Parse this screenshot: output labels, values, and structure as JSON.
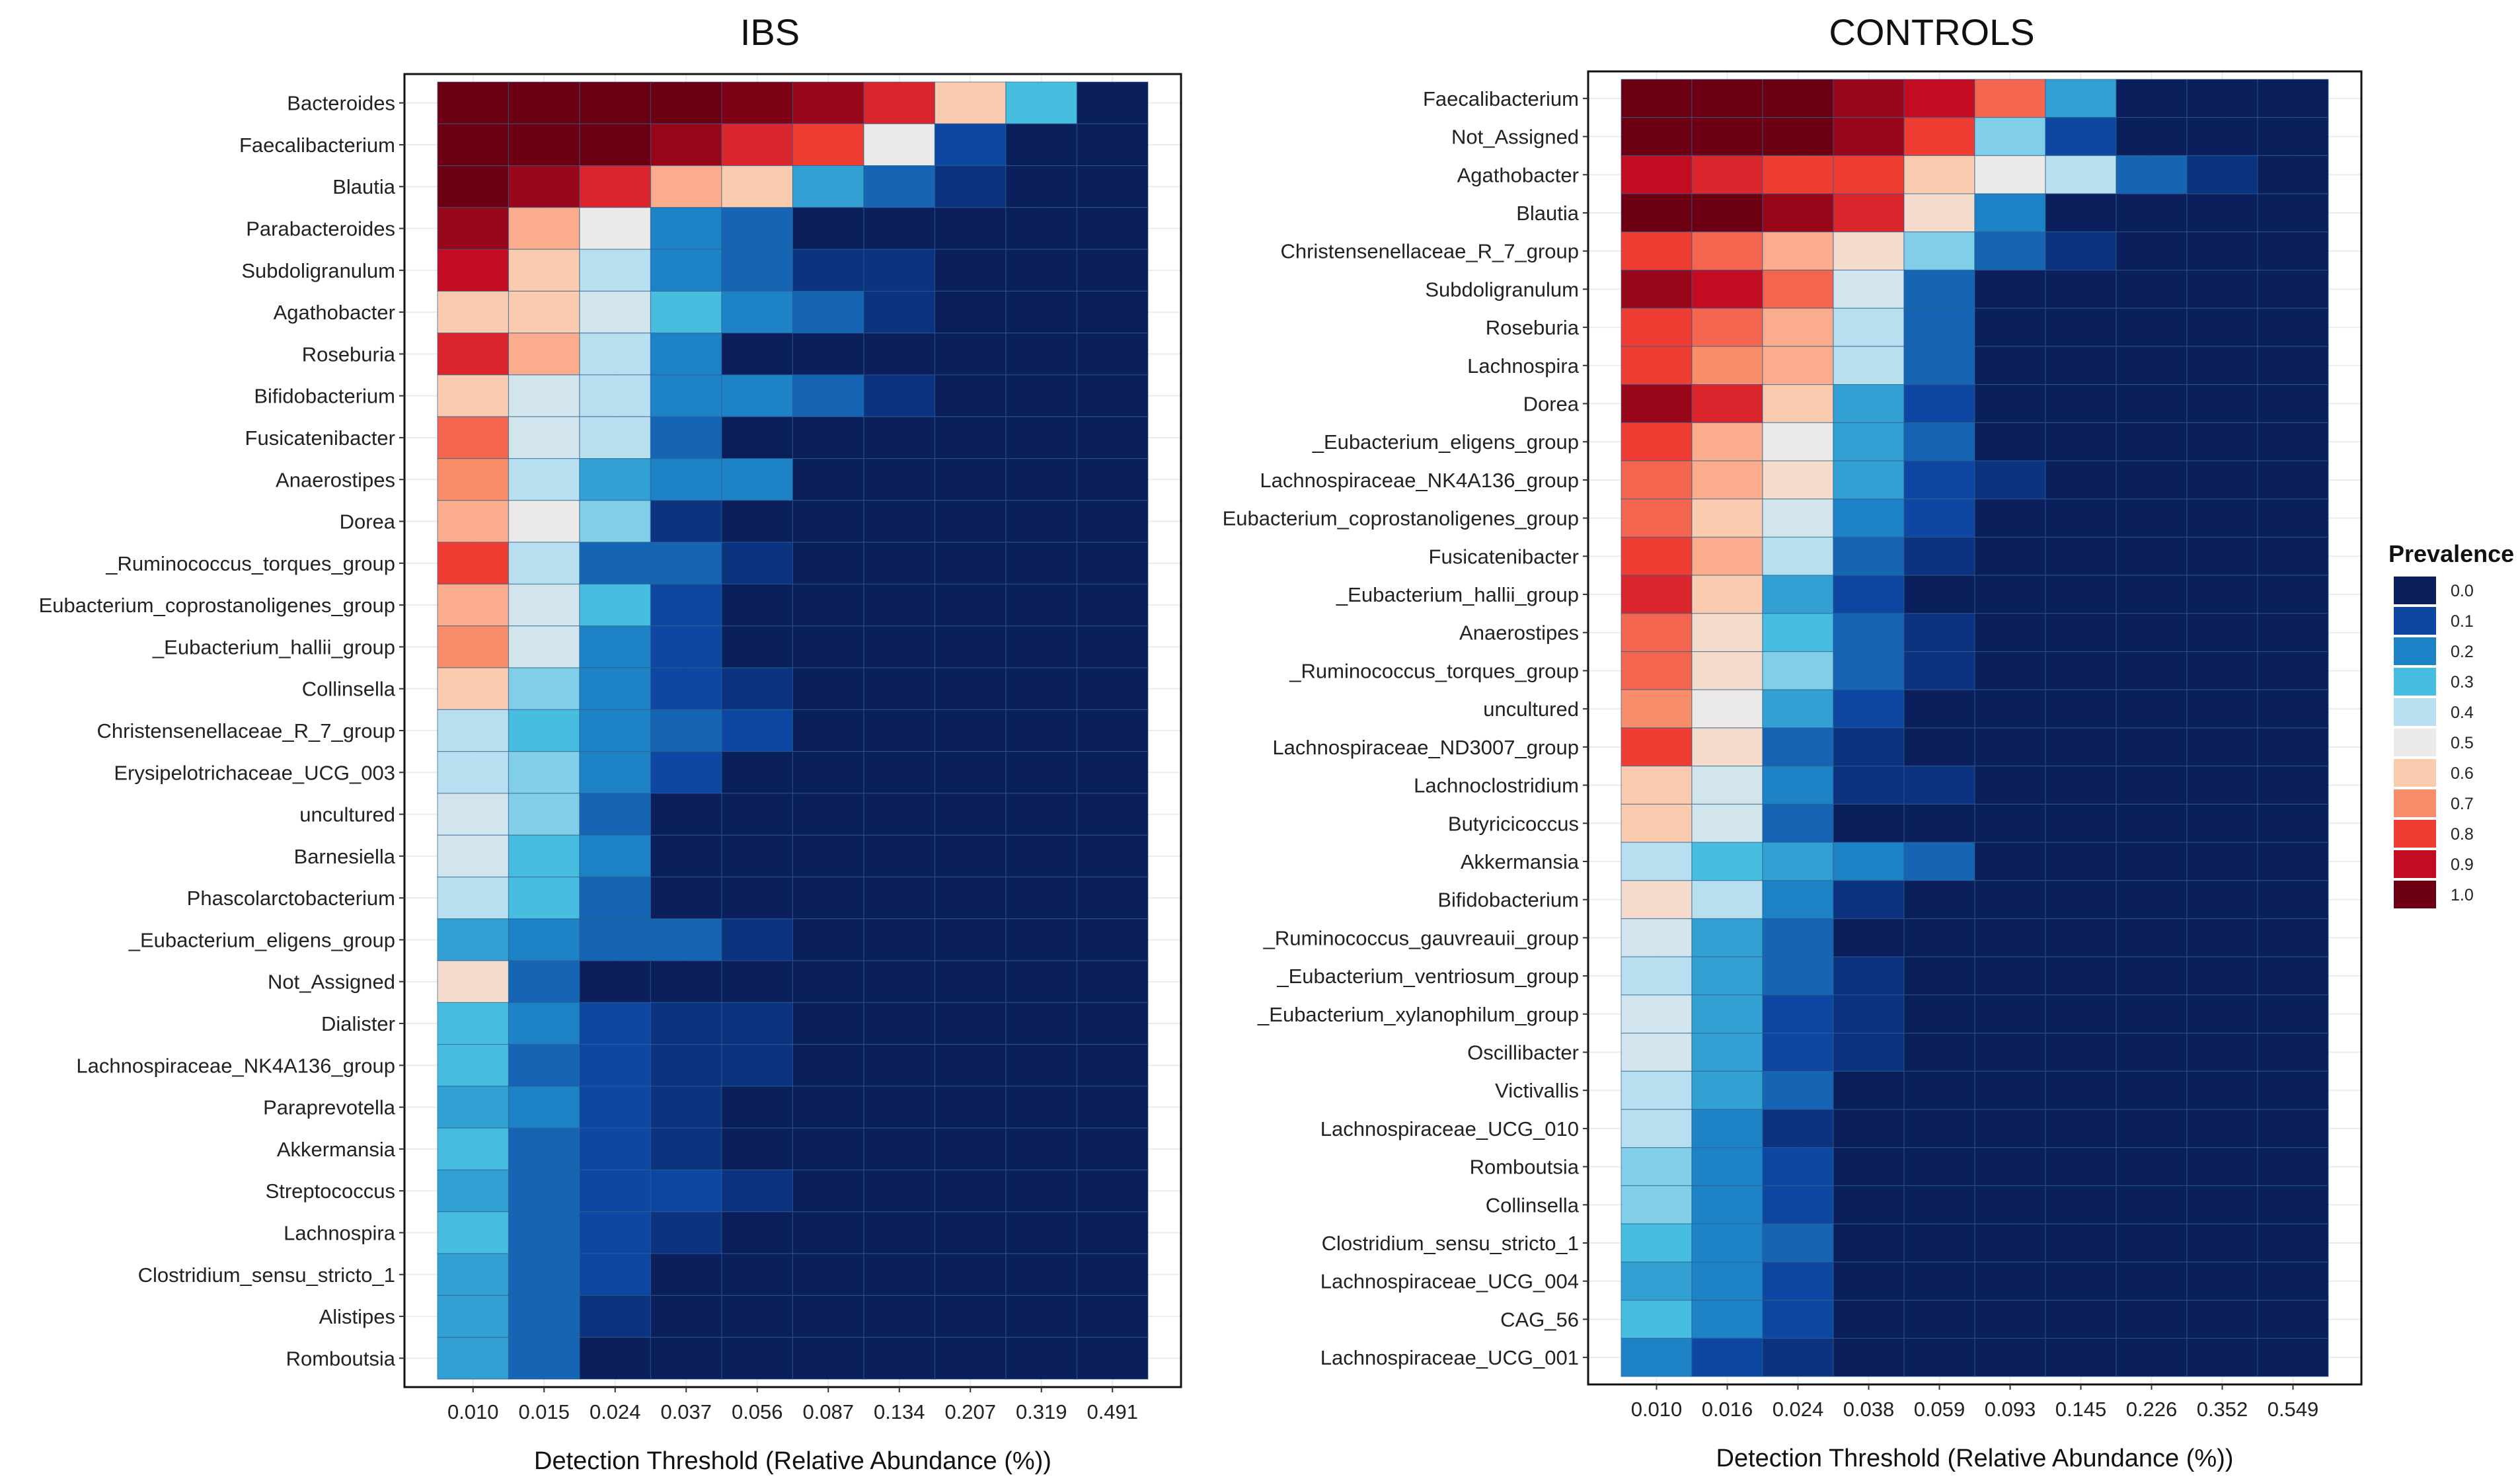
{
  "chart_data": [
    {
      "type": "heatmap",
      "title": "IBS",
      "xlabel": "Detection Threshold (Relative Abundance (%))",
      "ylabel": "",
      "x_categories": [
        "0.010",
        "0.015",
        "0.024",
        "0.037",
        "0.056",
        "0.087",
        "0.134",
        "0.207",
        "0.319",
        "0.491"
      ],
      "y_categories": [
        "Bacteroides",
        "Faecalibacterium",
        "Blautia",
        "Parabacteroides",
        "Subdoligranulum",
        "Agathobacter",
        "Roseburia",
        "Bifidobacterium",
        "Fusicatenibacter",
        "Anaerostipes",
        "Dorea",
        "_Ruminococcus_torques_group",
        "Eubacterium_coprostanoligenes_group",
        "_Eubacterium_hallii_group",
        "Collinsella",
        "Christensenellaceae_R_7_group",
        "Erysipelotrichaceae_UCG_003",
        "uncultured",
        "Barnesiella",
        "Phascolarctobacterium",
        "_Eubacterium_eligens_group",
        "Not_Assigned",
        "Dialister",
        "Lachnospiraceae_NK4A136_group",
        "Paraprevotella",
        "Akkermansia",
        "Streptococcus",
        "Lachnospira",
        "Clostridium_sensu_stricto_1",
        "Alistipes",
        "Romboutsia"
      ],
      "values": [
        [
          1.0,
          1.0,
          1.0,
          1.0,
          0.98,
          0.95,
          0.85,
          0.6,
          0.3,
          0.0
        ],
        [
          1.0,
          1.0,
          1.0,
          0.95,
          0.85,
          0.8,
          0.5,
          0.1,
          0.0,
          0.0
        ],
        [
          1.0,
          0.95,
          0.85,
          0.65,
          0.6,
          0.25,
          0.15,
          0.05,
          0.0,
          0.0
        ],
        [
          0.95,
          0.65,
          0.5,
          0.2,
          0.15,
          0.0,
          0.0,
          0.0,
          0.0,
          0.0
        ],
        [
          0.9,
          0.6,
          0.4,
          0.2,
          0.15,
          0.05,
          0.05,
          0.0,
          0.0,
          0.0
        ],
        [
          0.6,
          0.6,
          0.45,
          0.3,
          0.2,
          0.15,
          0.05,
          0.0,
          0.0,
          0.0
        ],
        [
          0.85,
          0.65,
          0.4,
          0.2,
          0.0,
          0.0,
          0.0,
          0.0,
          0.0,
          0.0
        ],
        [
          0.6,
          0.45,
          0.4,
          0.2,
          0.2,
          0.15,
          0.05,
          0.0,
          0.0,
          0.0
        ],
        [
          0.75,
          0.45,
          0.4,
          0.15,
          0.0,
          0.0,
          0.0,
          0.0,
          0.0,
          0.0
        ],
        [
          0.7,
          0.4,
          0.25,
          0.2,
          0.2,
          0.0,
          0.0,
          0.0,
          0.0,
          0.0
        ],
        [
          0.65,
          0.5,
          0.35,
          0.05,
          0.0,
          0.0,
          0.0,
          0.0,
          0.0,
          0.0
        ],
        [
          0.8,
          0.4,
          0.15,
          0.15,
          0.05,
          0.0,
          0.0,
          0.0,
          0.0,
          0.0
        ],
        [
          0.65,
          0.45,
          0.3,
          0.1,
          0.0,
          0.0,
          0.0,
          0.0,
          0.0,
          0.0
        ],
        [
          0.7,
          0.45,
          0.2,
          0.1,
          0.0,
          0.0,
          0.0,
          0.0,
          0.0,
          0.0
        ],
        [
          0.6,
          0.35,
          0.2,
          0.1,
          0.05,
          0.0,
          0.0,
          0.0,
          0.0,
          0.0
        ],
        [
          0.4,
          0.3,
          0.2,
          0.15,
          0.1,
          0.0,
          0.0,
          0.0,
          0.0,
          0.0
        ],
        [
          0.4,
          0.35,
          0.2,
          0.1,
          0.0,
          0.0,
          0.0,
          0.0,
          0.0,
          0.0
        ],
        [
          0.45,
          0.35,
          0.15,
          0.0,
          0.0,
          0.0,
          0.0,
          0.0,
          0.0,
          0.0
        ],
        [
          0.45,
          0.3,
          0.2,
          0.0,
          0.0,
          0.0,
          0.0,
          0.0,
          0.0,
          0.0
        ],
        [
          0.4,
          0.3,
          0.15,
          0.0,
          0.0,
          0.0,
          0.0,
          0.0,
          0.0,
          0.0
        ],
        [
          0.25,
          0.2,
          0.15,
          0.15,
          0.05,
          0.0,
          0.0,
          0.0,
          0.0,
          0.0
        ],
        [
          0.55,
          0.15,
          0.0,
          0.0,
          0.0,
          0.0,
          0.0,
          0.0,
          0.0,
          0.0
        ],
        [
          0.3,
          0.2,
          0.1,
          0.05,
          0.05,
          0.0,
          0.0,
          0.0,
          0.0,
          0.0
        ],
        [
          0.3,
          0.15,
          0.1,
          0.05,
          0.05,
          0.0,
          0.0,
          0.0,
          0.0,
          0.0
        ],
        [
          0.25,
          0.2,
          0.1,
          0.05,
          0.0,
          0.0,
          0.0,
          0.0,
          0.0,
          0.0
        ],
        [
          0.3,
          0.15,
          0.1,
          0.05,
          0.0,
          0.0,
          0.0,
          0.0,
          0.0,
          0.0
        ],
        [
          0.25,
          0.15,
          0.1,
          0.1,
          0.05,
          0.0,
          0.0,
          0.0,
          0.0,
          0.0
        ],
        [
          0.3,
          0.15,
          0.1,
          0.05,
          0.0,
          0.0,
          0.0,
          0.0,
          0.0,
          0.0
        ],
        [
          0.25,
          0.15,
          0.1,
          0.0,
          0.0,
          0.0,
          0.0,
          0.0,
          0.0,
          0.0
        ],
        [
          0.25,
          0.15,
          0.05,
          0.0,
          0.0,
          0.0,
          0.0,
          0.0,
          0.0,
          0.0
        ],
        [
          0.25,
          0.15,
          0.0,
          0.0,
          0.0,
          0.0,
          0.0,
          0.0,
          0.0,
          0.0
        ]
      ]
    },
    {
      "type": "heatmap",
      "title": "CONTROLS",
      "xlabel": "Detection Threshold (Relative Abundance (%))",
      "ylabel": "",
      "x_categories": [
        "0.010",
        "0.016",
        "0.024",
        "0.038",
        "0.059",
        "0.093",
        "0.145",
        "0.226",
        "0.352",
        "0.549"
      ],
      "y_categories": [
        "Faecalibacterium",
        "Not_Assigned",
        "Agathobacter",
        "Blautia",
        "Christensenellaceae_R_7_group",
        "Subdoligranulum",
        "Roseburia",
        "Lachnospira",
        "Dorea",
        "_Eubacterium_eligens_group",
        "Lachnospiraceae_NK4A136_group",
        "Eubacterium_coprostanoligenes_group",
        "Fusicatenibacter",
        "_Eubacterium_hallii_group",
        "Anaerostipes",
        "_Ruminococcus_torques_group",
        "uncultured",
        "Lachnospiraceae_ND3007_group",
        "Lachnoclostridium",
        "Butyricicoccus",
        "Akkermansia",
        "Bifidobacterium",
        "_Ruminococcus_gauvreauii_group",
        "_Eubacterium_ventriosum_group",
        "_Eubacterium_xylanophilum_group",
        "Oscillibacter",
        "Victivallis",
        "Lachnospiraceae_UCG_010",
        "Romboutsia",
        "Collinsella",
        "Clostridium_sensu_stricto_1",
        "Lachnospiraceae_UCG_004",
        "CAG_56",
        "Lachnospiraceae_UCG_001"
      ],
      "values": [
        [
          1.0,
          1.0,
          1.0,
          0.95,
          0.9,
          0.75,
          0.25,
          0.0,
          0.0,
          0.0
        ],
        [
          1.0,
          1.0,
          1.0,
          0.95,
          0.8,
          0.35,
          0.1,
          0.0,
          0.0,
          0.0
        ],
        [
          0.9,
          0.85,
          0.8,
          0.8,
          0.6,
          0.5,
          0.4,
          0.15,
          0.05,
          0.0
        ],
        [
          1.0,
          1.0,
          0.95,
          0.85,
          0.55,
          0.2,
          0.0,
          0.0,
          0.0,
          0.0
        ],
        [
          0.8,
          0.75,
          0.65,
          0.55,
          0.35,
          0.15,
          0.05,
          0.0,
          0.0,
          0.0
        ],
        [
          0.95,
          0.9,
          0.75,
          0.45,
          0.15,
          0.0,
          0.0,
          0.0,
          0.0,
          0.0
        ],
        [
          0.8,
          0.75,
          0.65,
          0.4,
          0.15,
          0.0,
          0.0,
          0.0,
          0.0,
          0.0
        ],
        [
          0.8,
          0.7,
          0.65,
          0.4,
          0.15,
          0.0,
          0.0,
          0.0,
          0.0,
          0.0
        ],
        [
          0.95,
          0.85,
          0.6,
          0.25,
          0.1,
          0.0,
          0.0,
          0.0,
          0.0,
          0.0
        ],
        [
          0.8,
          0.65,
          0.5,
          0.25,
          0.15,
          0.0,
          0.0,
          0.0,
          0.0,
          0.0
        ],
        [
          0.75,
          0.65,
          0.55,
          0.25,
          0.1,
          0.05,
          0.0,
          0.0,
          0.0,
          0.0
        ],
        [
          0.75,
          0.6,
          0.45,
          0.2,
          0.1,
          0.0,
          0.0,
          0.0,
          0.0,
          0.0
        ],
        [
          0.8,
          0.65,
          0.4,
          0.15,
          0.05,
          0.0,
          0.0,
          0.0,
          0.0,
          0.0
        ],
        [
          0.85,
          0.6,
          0.25,
          0.1,
          0.0,
          0.0,
          0.0,
          0.0,
          0.0,
          0.0
        ],
        [
          0.75,
          0.55,
          0.3,
          0.15,
          0.05,
          0.0,
          0.0,
          0.0,
          0.0,
          0.0
        ],
        [
          0.75,
          0.55,
          0.35,
          0.15,
          0.05,
          0.0,
          0.0,
          0.0,
          0.0,
          0.0
        ],
        [
          0.7,
          0.5,
          0.25,
          0.1,
          0.0,
          0.0,
          0.0,
          0.0,
          0.0,
          0.0
        ],
        [
          0.8,
          0.55,
          0.15,
          0.05,
          0.0,
          0.0,
          0.0,
          0.0,
          0.0,
          0.0
        ],
        [
          0.6,
          0.45,
          0.2,
          0.05,
          0.05,
          0.0,
          0.0,
          0.0,
          0.0,
          0.0
        ],
        [
          0.6,
          0.45,
          0.15,
          0.0,
          0.0,
          0.0,
          0.0,
          0.0,
          0.0,
          0.0
        ],
        [
          0.4,
          0.3,
          0.25,
          0.2,
          0.15,
          0.0,
          0.0,
          0.0,
          0.0,
          0.0
        ],
        [
          0.55,
          0.4,
          0.2,
          0.05,
          0.0,
          0.0,
          0.0,
          0.0,
          0.0,
          0.0
        ],
        [
          0.45,
          0.25,
          0.15,
          0.0,
          0.0,
          0.0,
          0.0,
          0.0,
          0.0,
          0.0
        ],
        [
          0.4,
          0.25,
          0.15,
          0.05,
          0.0,
          0.0,
          0.0,
          0.0,
          0.0,
          0.0
        ],
        [
          0.45,
          0.25,
          0.1,
          0.05,
          0.0,
          0.0,
          0.0,
          0.0,
          0.0,
          0.0
        ],
        [
          0.45,
          0.25,
          0.1,
          0.05,
          0.0,
          0.0,
          0.0,
          0.0,
          0.0,
          0.0
        ],
        [
          0.4,
          0.25,
          0.15,
          0.0,
          0.0,
          0.0,
          0.0,
          0.0,
          0.0,
          0.0
        ],
        [
          0.4,
          0.2,
          0.05,
          0.0,
          0.0,
          0.0,
          0.0,
          0.0,
          0.0,
          0.0
        ],
        [
          0.35,
          0.2,
          0.1,
          0.0,
          0.0,
          0.0,
          0.0,
          0.0,
          0.0,
          0.0
        ],
        [
          0.35,
          0.2,
          0.1,
          0.0,
          0.0,
          0.0,
          0.0,
          0.0,
          0.0,
          0.0
        ],
        [
          0.3,
          0.2,
          0.15,
          0.0,
          0.0,
          0.0,
          0.0,
          0.0,
          0.0,
          0.0
        ],
        [
          0.25,
          0.2,
          0.1,
          0.0,
          0.0,
          0.0,
          0.0,
          0.0,
          0.0,
          0.0
        ],
        [
          0.3,
          0.2,
          0.1,
          0.0,
          0.0,
          0.0,
          0.0,
          0.0,
          0.0,
          0.0
        ],
        [
          0.2,
          0.1,
          0.05,
          0.0,
          0.0,
          0.0,
          0.0,
          0.0,
          0.0,
          0.0
        ]
      ]
    }
  ],
  "legend": {
    "title": "Prevalence",
    "ticks": [
      "0.0",
      "0.1",
      "0.2",
      "0.3",
      "0.4",
      "0.5",
      "0.6",
      "0.7",
      "0.8",
      "0.9",
      "1.0"
    ],
    "colors": [
      "#0a1f5c",
      "#0d47a1",
      "#1d82c6",
      "#47bde0",
      "#b8dff0",
      "#eceae8",
      "#fbcbb0",
      "#f88d69",
      "#ef3d34",
      "#c30c22",
      "#6c0012"
    ]
  }
}
